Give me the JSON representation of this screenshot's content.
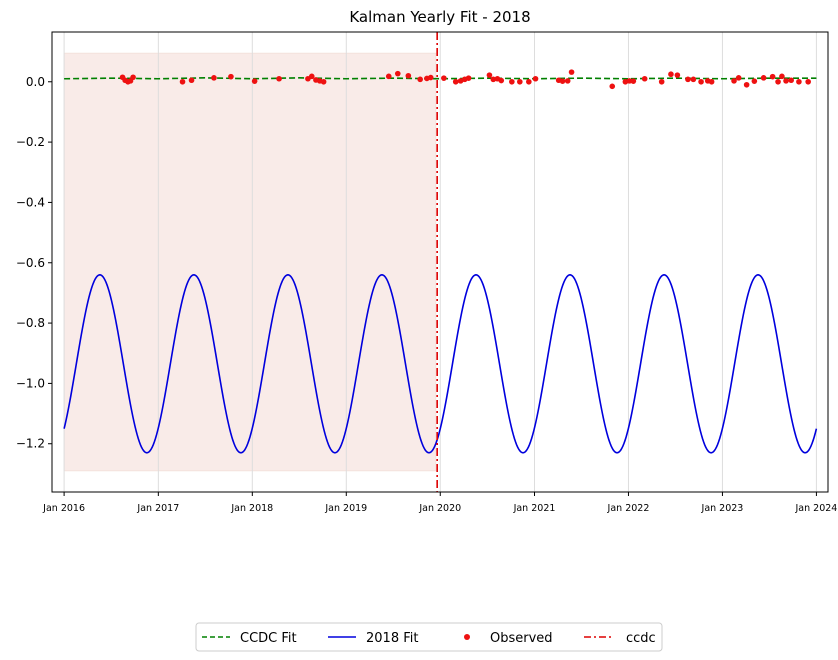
{
  "chart_data": {
    "type": "line",
    "title": "Kalman Yearly Fit - 2018",
    "xlabel": "",
    "ylabel": "",
    "xlim": [
      "2015-11-15",
      "2024-02-15"
    ],
    "ylim": [
      -1.36,
      0.165
    ],
    "x_ticks": [
      "Jan 2016",
      "Jan 2017",
      "Jan 2018",
      "Jan 2019",
      "Jan 2020",
      "Jan 2021",
      "Jan 2022",
      "Jan 2023",
      "Jan 2024"
    ],
    "x_tick_dates": [
      "2016-01-01",
      "2017-01-01",
      "2018-01-01",
      "2019-01-01",
      "2020-01-01",
      "2021-01-01",
      "2022-01-01",
      "2023-01-01",
      "2024-01-01"
    ],
    "y_ticks": [
      "0.0",
      "−0.2",
      "−0.4",
      "−0.6",
      "−0.8",
      "−1.0",
      "−1.2"
    ],
    "y_tick_values": [
      0.0,
      -0.2,
      -0.4,
      -0.6,
      -0.8,
      -1.0,
      -1.2
    ],
    "vertical_grid": true,
    "shaded_region": {
      "x": [
        "2016-01-01",
        "2019-12-15"
      ],
      "y": [
        -1.29,
        0.095
      ],
      "color": "#f9ebe8"
    },
    "series": [
      {
        "name": "CCDC Fit",
        "style": "dashed",
        "color": "#008000",
        "x": [
          "2016-01-01",
          "2016-07-01",
          "2017-01-01",
          "2017-07-01",
          "2018-01-01",
          "2018-07-01",
          "2019-01-01",
          "2019-07-01",
          "2020-01-01",
          "2020-07-01",
          "2021-01-01",
          "2021-07-01",
          "2022-01-01",
          "2022-07-01",
          "2023-01-01",
          "2023-07-01",
          "2024-01-01"
        ],
        "values": [
          0.01,
          0.012,
          0.01,
          0.013,
          0.01,
          0.013,
          0.01,
          0.012,
          0.01,
          0.012,
          0.01,
          0.012,
          0.01,
          0.012,
          0.01,
          0.012,
          0.012
        ]
      },
      {
        "name": "2018 Fit",
        "style": "solid",
        "color": "#0000dd",
        "x_start": "2016-01-01",
        "x_end": "2024-01-01",
        "mean": -0.935,
        "amplitude": 0.295,
        "peak_year_fraction": 0.38,
        "period_years": 1
      },
      {
        "name": "Observed",
        "style": "points",
        "color": "#ee1111",
        "x": [
          "2016-08-15",
          "2016-08-25",
          "2016-09-05",
          "2016-09-15",
          "2016-09-25",
          "2017-04-05",
          "2017-05-10",
          "2017-08-05",
          "2017-10-10",
          "2018-01-10",
          "2018-04-15",
          "2018-08-05",
          "2018-08-20",
          "2018-09-05",
          "2018-09-20",
          "2018-10-05",
          "2019-06-15",
          "2019-07-20",
          "2019-08-30",
          "2019-10-15",
          "2019-11-10",
          "2019-11-25",
          "2020-01-15",
          "2020-03-01",
          "2020-03-20",
          "2020-04-05",
          "2020-04-20",
          "2020-07-10",
          "2020-07-25",
          "2020-08-10",
          "2020-08-25",
          "2020-10-05",
          "2020-11-05",
          "2020-12-10",
          "2021-01-05",
          "2021-04-05",
          "2021-04-20",
          "2021-05-10",
          "2021-05-25",
          "2021-10-30",
          "2021-12-20",
          "2022-01-05",
          "2022-01-20",
          "2022-03-05",
          "2022-05-10",
          "2022-06-15",
          "2022-07-10",
          "2022-08-20",
          "2022-09-10",
          "2022-10-10",
          "2022-11-05",
          "2022-11-20",
          "2023-02-15",
          "2023-03-05",
          "2023-04-05",
          "2023-05-05",
          "2023-06-10",
          "2023-07-15",
          "2023-08-05",
          "2023-08-20",
          "2023-09-05",
          "2023-09-25",
          "2023-10-25",
          "2023-11-30"
        ],
        "values": [
          0.015,
          0.005,
          0.0,
          0.003,
          0.015,
          0.0,
          0.005,
          0.013,
          0.017,
          0.002,
          0.01,
          0.01,
          0.018,
          0.006,
          0.003,
          0.0,
          0.018,
          0.027,
          0.02,
          0.008,
          0.011,
          0.014,
          0.012,
          0.0,
          0.003,
          0.008,
          0.012,
          0.022,
          0.008,
          0.01,
          0.004,
          0.0,
          0.0,
          0.0,
          0.01,
          0.005,
          0.002,
          0.003,
          0.032,
          -0.015,
          0.0,
          0.003,
          0.002,
          0.01,
          0.0,
          0.025,
          0.022,
          0.008,
          0.008,
          0.0,
          0.003,
          0.0,
          0.003,
          0.013,
          -0.01,
          0.002,
          0.013,
          0.017,
          0.0,
          0.018,
          0.003,
          0.005,
          0.0,
          0.0
        ]
      },
      {
        "name": "ccdc",
        "style": "dashdot-vertical",
        "color": "#dd0000",
        "x": [
          "2019-12-20"
        ]
      }
    ],
    "legend_position": "bottom-center"
  }
}
